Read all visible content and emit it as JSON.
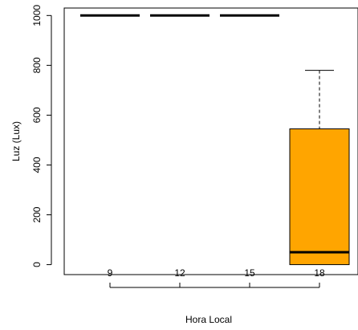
{
  "chart_data": {
    "type": "boxplot",
    "xlabel": "Hora Local",
    "ylabel": "Luz (Lux)",
    "categories": [
      "9",
      "12",
      "15",
      "18"
    ],
    "yticks": [
      0,
      200,
      400,
      600,
      800,
      1000
    ],
    "ylim": [
      -40,
      1030
    ],
    "box_color": "#FFA500",
    "boxes": [
      {
        "label": "9",
        "min": 1000,
        "q1": 1000,
        "median": 1000,
        "q3": 1000,
        "max": 1000
      },
      {
        "label": "12",
        "min": 1000,
        "q1": 1000,
        "median": 1000,
        "q3": 1000,
        "max": 1000
      },
      {
        "label": "15",
        "min": 1000,
        "q1": 1000,
        "median": 1000,
        "q3": 1000,
        "max": 1000
      },
      {
        "label": "18",
        "min": 0,
        "q1": 0,
        "median": 50,
        "q3": 545,
        "max": 780
      }
    ]
  }
}
